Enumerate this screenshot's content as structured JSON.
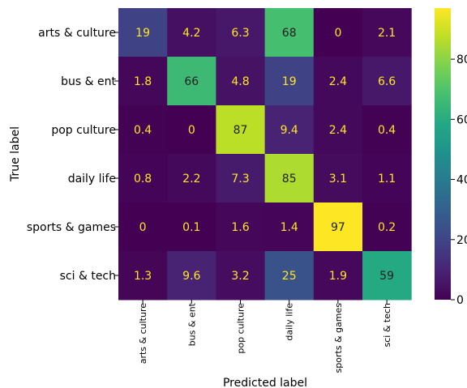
{
  "chart_data": {
    "type": "heatmap",
    "title": "",
    "xlabel": "Predicted label",
    "ylabel": "True label",
    "rows": [
      "arts & culture",
      "bus & ent",
      "pop culture",
      "daily life",
      "sports & games",
      "sci & tech"
    ],
    "columns": [
      "arts & culture",
      "bus & ent",
      "pop culture",
      "daily life",
      "sports & games",
      "sci & tech"
    ],
    "values": [
      [
        19,
        4.2,
        6.3,
        68,
        0,
        2.1
      ],
      [
        1.8,
        66,
        4.8,
        19,
        2.4,
        6.6
      ],
      [
        0.4,
        0,
        87,
        9.4,
        2.4,
        0.4
      ],
      [
        0.8,
        2.2,
        7.3,
        85,
        3.1,
        1.1
      ],
      [
        0,
        0.1,
        1.6,
        1.4,
        97,
        0.2
      ],
      [
        1.3,
        9.6,
        3.2,
        25,
        1.9,
        59
      ]
    ],
    "labels": [
      [
        "19",
        "4.2",
        "6.3",
        "68",
        "0",
        "2.1"
      ],
      [
        "1.8",
        "66",
        "4.8",
        "19",
        "2.4",
        "6.6"
      ],
      [
        "0.4",
        "0",
        "87",
        "9.4",
        "2.4",
        "0.4"
      ],
      [
        "0.8",
        "2.2",
        "7.3",
        "85",
        "3.1",
        "1.1"
      ],
      [
        "0",
        "0.1",
        "1.6",
        "1.4",
        "97",
        "0.2"
      ],
      [
        "1.3",
        "9.6",
        "3.2",
        "25",
        "1.9",
        "59"
      ]
    ],
    "colorbar": {
      "min": 0,
      "max": 97,
      "ticks": [
        0,
        20,
        40,
        60,
        80
      ],
      "tick_labels": [
        "0",
        "20",
        "40",
        "60",
        "80"
      ],
      "colormap": "viridis"
    },
    "grid": false,
    "legend": "none"
  }
}
